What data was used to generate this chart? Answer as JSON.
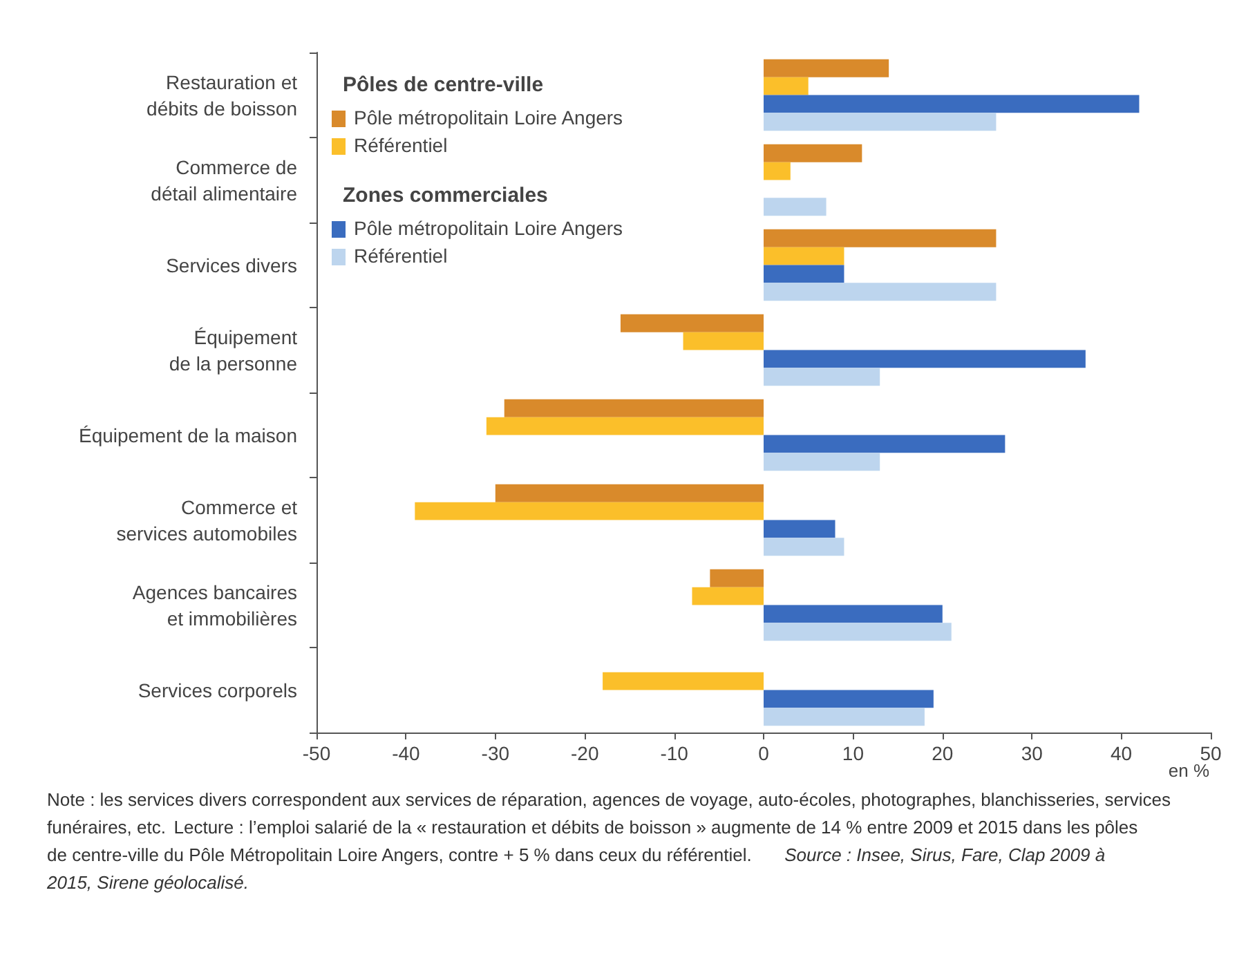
{
  "chart_data": {
    "type": "bar",
    "orientation": "horizontal",
    "xlabel": "en %",
    "categories": [
      "Restauration et\ndébits de boisson",
      "Commerce de\ndétail alimentaire",
      "Services divers",
      "Équipement\nde la personne",
      "Équipement de la maison",
      "Commerce et\nservices automobiles",
      "Agences bancaires\net immobilières",
      "Services corporels"
    ],
    "series": [
      {
        "name": "Pôle métropolitain Loire Angers",
        "color": "#d98a2b",
        "values": [
          14,
          11,
          26,
          -16,
          -29,
          -30,
          -6,
          null
        ]
      },
      {
        "name": "Référentiel",
        "color": "#fbbf2a",
        "values": [
          5,
          3,
          9,
          -9,
          -31,
          -39,
          -8,
          -18
        ]
      },
      {
        "name": "Pôle métropolitain Loire Angers",
        "color": "#3a6cbf",
        "values": [
          42,
          null,
          9,
          36,
          27,
          8,
          20,
          19
        ]
      },
      {
        "name": "Référentiel",
        "color": "#bdd5ee",
        "values": [
          26,
          7,
          26,
          13,
          13,
          9,
          21,
          18
        ]
      }
    ],
    "xlim": [
      -50,
      50
    ],
    "xticks": [
      -50,
      -40,
      -30,
      -20,
      -10,
      0,
      10,
      20,
      30,
      40,
      50
    ],
    "grid": false,
    "legend": "top left",
    "annotations": [
      "Pôles de centre-ville",
      "Zones commerciales",
      "Note : les services divers correspondent aux services de réparation, agences de voyage, auto-écoles, photographes, blanchisseries, services funéraires, etc.",
      "Lecture : l’emploi salarié de la « restauration et débits de boisson » augmente de 14 % entre 2009 et 2015 dans les pôles de centre-ville du Pôle Métropolitain Loire Angers, contre + 5 % dans ceux du référentiel.",
      "Source : Insee, Sirus, Fare, Clap 2009 à 2015, Sirene géolocalisé."
    ]
  }
}
